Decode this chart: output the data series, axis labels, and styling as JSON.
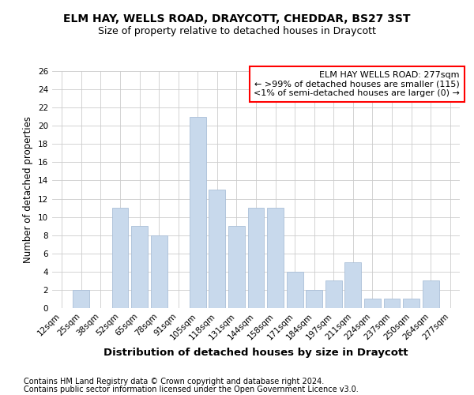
{
  "title": "ELM HAY, WELLS ROAD, DRAYCOTT, CHEDDAR, BS27 3ST",
  "subtitle": "Size of property relative to detached houses in Draycott",
  "xlabel": "Distribution of detached houses by size in Draycott",
  "ylabel": "Number of detached properties",
  "bar_color": "#c8d9ec",
  "bar_edge_color": "#aabfd8",
  "categories": [
    "12sqm",
    "25sqm",
    "38sqm",
    "52sqm",
    "65sqm",
    "78sqm",
    "91sqm",
    "105sqm",
    "118sqm",
    "131sqm",
    "144sqm",
    "158sqm",
    "171sqm",
    "184sqm",
    "197sqm",
    "211sqm",
    "224sqm",
    "237sqm",
    "250sqm",
    "264sqm",
    "277sqm"
  ],
  "values": [
    0,
    2,
    0,
    11,
    9,
    8,
    0,
    21,
    13,
    9,
    11,
    11,
    4,
    2,
    3,
    5,
    1,
    1,
    1,
    3,
    0
  ],
  "ylim": [
    0,
    26
  ],
  "yticks": [
    0,
    2,
    4,
    6,
    8,
    10,
    12,
    14,
    16,
    18,
    20,
    22,
    24,
    26
  ],
  "annotation_box": {
    "text_line1": "ELM HAY WELLS ROAD: 277sqm",
    "text_line2": "← >99% of detached houses are smaller (115)",
    "text_line3": "<1% of semi-detached houses are larger (0) →",
    "box_color": "white",
    "edge_color": "red"
  },
  "footer_line1": "Contains HM Land Registry data © Crown copyright and database right 2024.",
  "footer_line2": "Contains public sector information licensed under the Open Government Licence v3.0.",
  "background_color": "white",
  "grid_color": "#cccccc",
  "title_fontsize": 10,
  "subtitle_fontsize": 9,
  "ylabel_fontsize": 8.5,
  "xlabel_fontsize": 9.5,
  "tick_fontsize": 7.5,
  "footer_fontsize": 7,
  "annotation_fontsize": 8
}
